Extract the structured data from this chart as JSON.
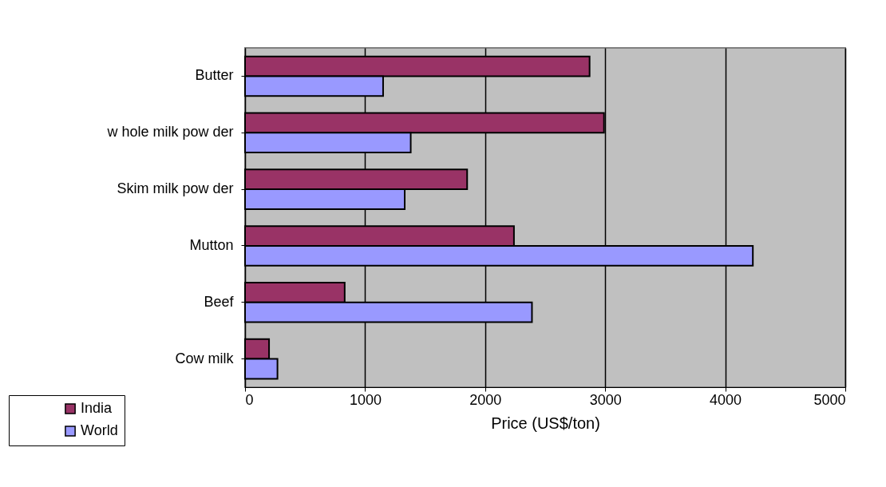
{
  "chart_data": {
    "type": "bar",
    "orientation": "horizontal",
    "categories": [
      "Butter",
      "w hole milk pow der",
      "Skim milk pow der",
      "Mutton",
      "Beef",
      "Cow  milk"
    ],
    "series": [
      {
        "name": "India",
        "color": "#993366",
        "values": [
          2870,
          2990,
          1850,
          2240,
          830,
          200
        ]
      },
      {
        "name": "World",
        "color": "#9999ff",
        "values": [
          1150,
          1380,
          1330,
          4230,
          2390,
          270
        ]
      }
    ],
    "xlabel": "Price (US$/ton)",
    "xlim": [
      0,
      5000
    ],
    "xticks": [
      0,
      1000,
      2000,
      3000,
      4000,
      5000
    ],
    "grid": "x",
    "legend": "bottom left"
  }
}
